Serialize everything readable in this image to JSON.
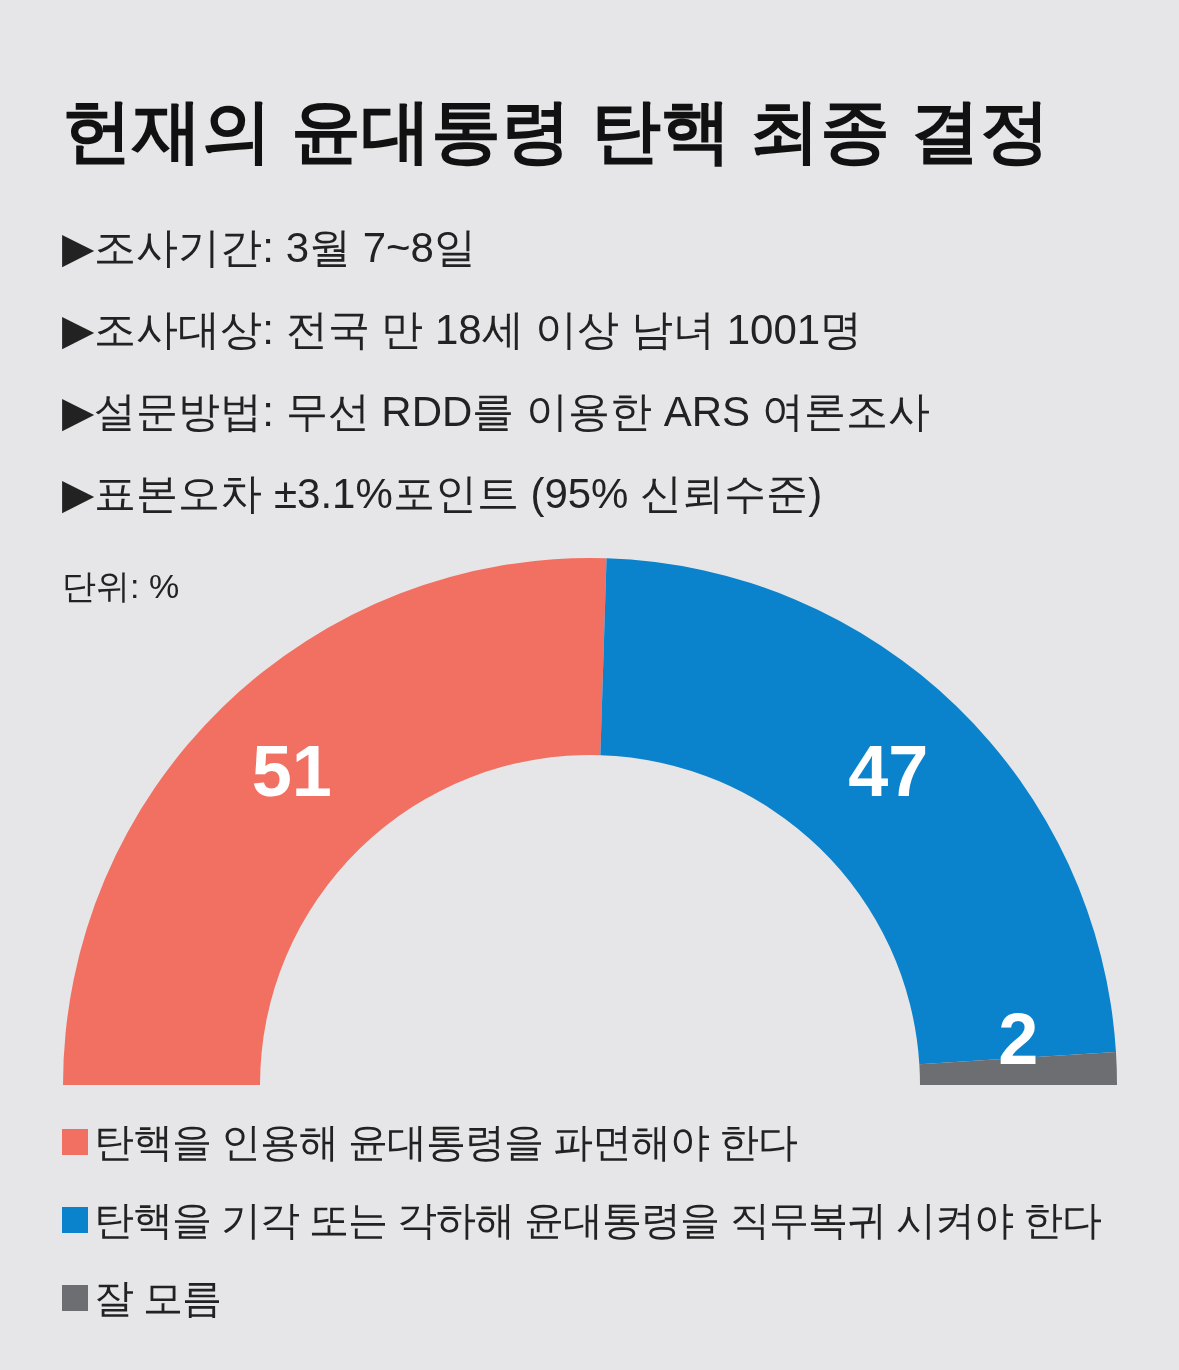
{
  "chart_data": {
    "type": "donut",
    "title": "헌재의 윤대통령 탄핵 최종 결정",
    "annotations": [
      "▶조사기간: 3월 7~8일",
      "▶조사대상: 전국 만 18세 이상 남녀 1001명",
      "▶설문방법: 무선 RDD를 이용한 ARS 여론조사",
      "▶표본오차 ±3.1%포인트 (95% 신뢰수준)",
      "단위: %"
    ],
    "categories": [
      "탄핵을 인용해 윤대통령을 파면해야 한다",
      "탄핵을 기각 또는 각하해 윤대통령을 직무복귀 시켜야 한다",
      "잘 모름"
    ],
    "values": [
      51,
      47,
      2
    ],
    "colors": [
      "#f27062",
      "#0a82cc",
      "#6d6e72"
    ],
    "data_labels": true,
    "legend": "bottom"
  }
}
